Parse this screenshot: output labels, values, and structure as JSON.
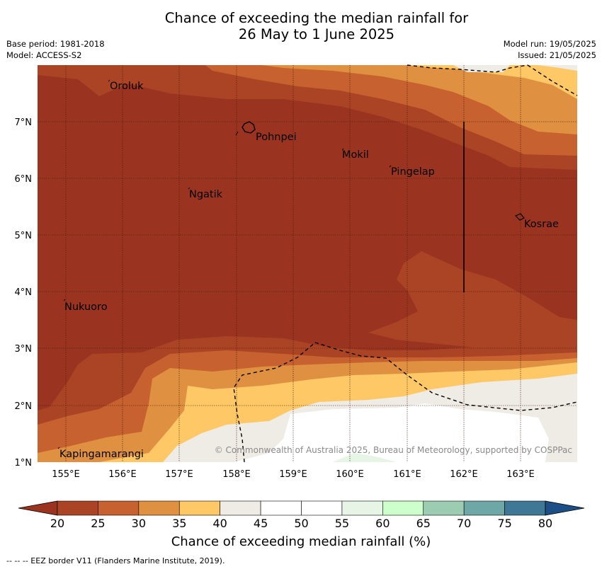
{
  "title_line1": "Chance of exceeding the median rainfall for",
  "title_line2": "26 May to 1 June 2025",
  "base_period": "Base period: 1981-2018",
  "model": "Model: ACCESS-S2",
  "model_run": "Model run: 19/05/2025",
  "issued": "Issued: 21/05/2025",
  "places": [
    "Oroluk",
    "Pohnpei",
    "Mokil",
    "Pingelap",
    "Ngatik",
    "Kosrae",
    "Nukuoro",
    "Kapingamarangi"
  ],
  "lat_ticks": [
    "7°N",
    "6°N",
    "5°N",
    "4°N",
    "3°N",
    "2°N",
    "1°N"
  ],
  "lon_ticks": [
    "155°E",
    "156°E",
    "157°E",
    "158°E",
    "159°E",
    "160°E",
    "161°E",
    "162°E",
    "163°E"
  ],
  "copyright": "© Commonwealth of Australia 2025, Bureau of Meteorology, supported by COSPPac",
  "colorbar": {
    "ticks": [
      "20",
      "25",
      "30",
      "35",
      "40",
      "45",
      "50",
      "55",
      "60",
      "65",
      "70",
      "75",
      "80"
    ],
    "colors": [
      "#9a3420",
      "#ab4425",
      "#c7612f",
      "#df9040",
      "#fdc865",
      "#efebe5",
      "#ffffff",
      "#ffffff",
      "#e6f5e6",
      "#ccffcc",
      "#9ccdb2",
      "#6fa6a6",
      "#3f7796",
      "#1b4f86"
    ],
    "label": "Chance of exceeding median rainfall (%)"
  },
  "footer": "--  --  -- EEZ border V11 (Flanders Marine Institute, 2019)."
}
